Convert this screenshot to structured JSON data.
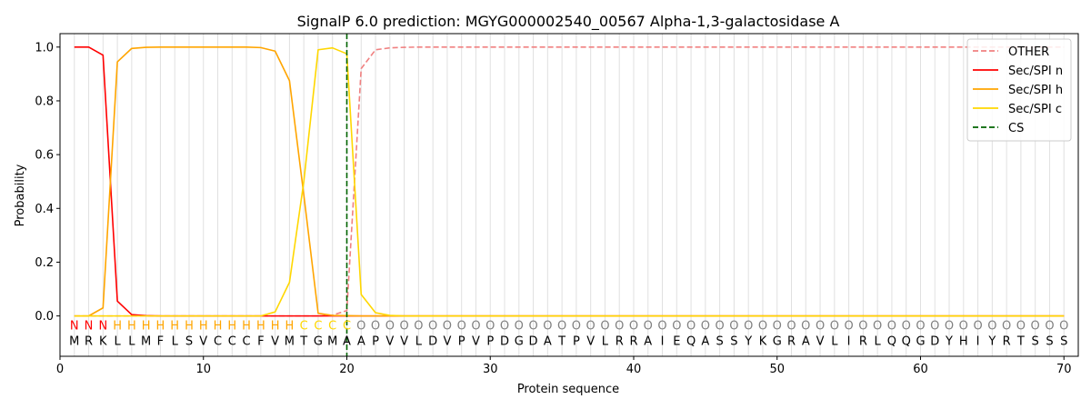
{
  "chart_data": {
    "type": "line",
    "title": "SignalP 6.0 prediction: MGYG000002540_00567 Alpha-1,3-galactosidase A",
    "xlabel": "Protein sequence",
    "ylabel": "Probability",
    "xlim": [
      0,
      71
    ],
    "ylim": [
      -0.15,
      1.05
    ],
    "xticks": [
      0,
      10,
      20,
      30,
      40,
      50,
      60,
      70
    ],
    "yticks": [
      0.0,
      0.2,
      0.4,
      0.6,
      0.8,
      1.0
    ],
    "grid": "vertical lines at each residue",
    "legend_position": "top-right",
    "sequence": [
      "M",
      "R",
      "K",
      "L",
      "L",
      "M",
      "F",
      "L",
      "S",
      "V",
      "C",
      "C",
      "C",
      "F",
      "V",
      "M",
      "T",
      "G",
      "M",
      "A",
      "A",
      "P",
      "V",
      "V",
      "L",
      "D",
      "V",
      "P",
      "V",
      "P",
      "D",
      "G",
      "D",
      "A",
      "T",
      "P",
      "V",
      "L",
      "R",
      "R",
      "A",
      "I",
      "E",
      "Q",
      "A",
      "S",
      "S",
      "Y",
      "K",
      "G",
      "R",
      "A",
      "V",
      "L",
      "I",
      "R",
      "L",
      "Q",
      "Q",
      "G",
      "D",
      "Y",
      "H",
      "I",
      "Y",
      "R",
      "T",
      "S",
      "S",
      "S"
    ],
    "region_labels": [
      "N",
      "N",
      "N",
      "H",
      "H",
      "H",
      "H",
      "H",
      "H",
      "H",
      "H",
      "H",
      "H",
      "H",
      "H",
      "H",
      "C",
      "C",
      "C",
      "C",
      "O",
      "O",
      "O",
      "O",
      "O",
      "O",
      "O",
      "O",
      "O",
      "O",
      "O",
      "O",
      "O",
      "O",
      "O",
      "O",
      "O",
      "O",
      "O",
      "O",
      "O",
      "O",
      "O",
      "O",
      "O",
      "O",
      "O",
      "O",
      "O",
      "O",
      "O",
      "O",
      "O",
      "O",
      "O",
      "O",
      "O",
      "O",
      "O",
      "O",
      "O",
      "O",
      "O",
      "O",
      "O",
      "O",
      "O",
      "O",
      "O",
      "O"
    ],
    "region_colors": {
      "N": "#ff0000",
      "H": "#ffa500",
      "C": "#ffd700",
      "O": "#808080"
    },
    "series": [
      {
        "name": "OTHER",
        "color": "#f08080",
        "style": "dashed",
        "values": [
          0,
          0,
          0,
          0,
          0,
          0,
          0,
          0,
          0,
          0,
          0,
          0,
          0,
          0,
          0,
          0,
          0,
          0,
          0.003,
          0.02,
          0.92,
          0.99,
          0.997,
          0.999,
          1,
          1,
          1,
          1,
          1,
          1,
          1,
          1,
          1,
          1,
          1,
          1,
          1,
          1,
          1,
          1,
          1,
          1,
          1,
          1,
          1,
          1,
          1,
          1,
          1,
          1,
          1,
          1,
          1,
          1,
          1,
          1,
          1,
          1,
          1,
          1,
          1,
          1,
          1,
          1,
          1,
          1,
          1,
          1,
          1,
          1
        ]
      },
      {
        "name": "Sec/SPI n",
        "color": "#ff0000",
        "style": "solid",
        "values": [
          1,
          1,
          0.97,
          0.055,
          0.005,
          0.001,
          0,
          0,
          0,
          0,
          0,
          0,
          0,
          0,
          0,
          0,
          0,
          0,
          0,
          0,
          0,
          0,
          0,
          0,
          0,
          0,
          0,
          0,
          0,
          0,
          0,
          0,
          0,
          0,
          0,
          0,
          0,
          0,
          0,
          0,
          0,
          0,
          0,
          0,
          0,
          0,
          0,
          0,
          0,
          0,
          0,
          0,
          0,
          0,
          0,
          0,
          0,
          0,
          0,
          0,
          0,
          0,
          0,
          0,
          0,
          0,
          0,
          0,
          0,
          0
        ]
      },
      {
        "name": "Sec/SPI h",
        "color": "#ffa500",
        "style": "solid",
        "values": [
          0,
          0,
          0.03,
          0.945,
          0.995,
          0.999,
          1,
          1,
          1,
          1,
          1,
          1,
          1,
          0.998,
          0.985,
          0.875,
          0.45,
          0.01,
          0.002,
          0.001,
          0,
          0,
          0,
          0,
          0,
          0,
          0,
          0,
          0,
          0,
          0,
          0,
          0,
          0,
          0,
          0,
          0,
          0,
          0,
          0,
          0,
          0,
          0,
          0,
          0,
          0,
          0,
          0,
          0,
          0,
          0,
          0,
          0,
          0,
          0,
          0,
          0,
          0,
          0,
          0,
          0,
          0,
          0,
          0,
          0,
          0,
          0,
          0,
          0,
          0
        ]
      },
      {
        "name": "Sec/SPI c",
        "color": "#ffd700",
        "style": "solid",
        "values": [
          0,
          0,
          0,
          0,
          0,
          0,
          0,
          0,
          0,
          0,
          0,
          0,
          0,
          0,
          0.015,
          0.125,
          0.5,
          0.99,
          0.997,
          0.975,
          0.08,
          0.012,
          0.002,
          0,
          0,
          0,
          0,
          0,
          0,
          0,
          0,
          0,
          0,
          0,
          0,
          0,
          0,
          0,
          0,
          0,
          0,
          0,
          0,
          0,
          0,
          0,
          0,
          0,
          0,
          0,
          0,
          0,
          0,
          0,
          0,
          0,
          0,
          0,
          0,
          0,
          0,
          0,
          0,
          0,
          0,
          0,
          0,
          0,
          0,
          0
        ]
      }
    ],
    "cs": {
      "name": "CS",
      "position": 20,
      "color": "#006400",
      "style": "dashed"
    }
  }
}
